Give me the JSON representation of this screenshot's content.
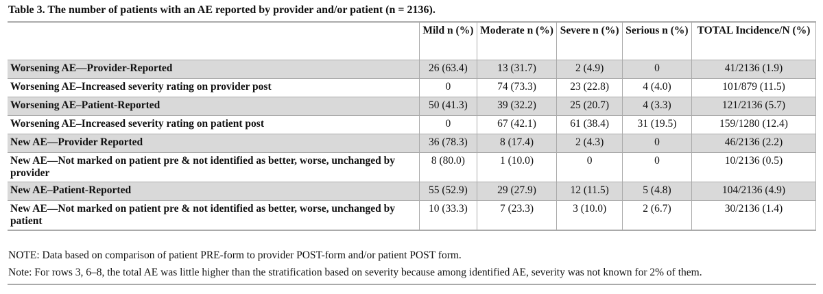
{
  "title": "Table 3.  The number of patients with an AE reported by provider and/or patient (n = 2136).",
  "columns": [
    "",
    "Mild n (%)",
    "Moderate n (%)",
    "Severe n (%)",
    "Serious n (%)",
    "TOTAL Incidence/N (%)"
  ],
  "rows": [
    [
      "Worsening AE—Provider-Reported",
      "26 (63.4)",
      "13 (31.7)",
      "2 (4.9)",
      "0",
      "41/2136 (1.9)"
    ],
    [
      "Worsening AE–Increased severity rating on provider post",
      "0",
      "74 (73.3)",
      "23 (22.8)",
      "4 (4.0)",
      "101/879 (11.5)"
    ],
    [
      "Worsening AE–Patient-Reported",
      "50 (41.3)",
      "39 (32.2)",
      "25 (20.7)",
      "4 (3.3)",
      "121/2136 (5.7)"
    ],
    [
      "Worsening AE–Increased severity rating on patient post",
      "0",
      "67 (42.1)",
      "61 (38.4)",
      "31 (19.5)",
      "159/1280 (12.4)"
    ],
    [
      "New AE—Provider Reported",
      "36 (78.3)",
      "8 (17.4)",
      "2 (4.3)",
      "0",
      "46/2136 (2.2)"
    ],
    [
      "New AE—Not marked on patient pre & not identified as better, worse, unchanged by provider",
      "8 (80.0)",
      "1 (10.0)",
      "0",
      "0",
      "10/2136 (0.5)"
    ],
    [
      "New AE–Patient-Reported",
      "55 (52.9)",
      "29 (27.9)",
      "12 (11.5)",
      "5 (4.8)",
      "104/2136 (4.9)"
    ],
    [
      "New AE—Not marked on patient pre & not identified as better, worse, unchanged by patient",
      "10 (33.3)",
      "7 (23.3)",
      "3 (10.0)",
      "2 (6.7)",
      "30/2136 (1.4)"
    ]
  ],
  "notes": [
    "NOTE: Data based on comparison of patient PRE-form to provider POST-form and/or patient POST form.",
    "Note: For rows 3, 6–8, the total AE was little higher than the stratification based on severity because among identified AE, severity was not known for 2% of them."
  ],
  "colors": {
    "shade": "#d9d9d9",
    "rule": "#aaaaaa"
  }
}
